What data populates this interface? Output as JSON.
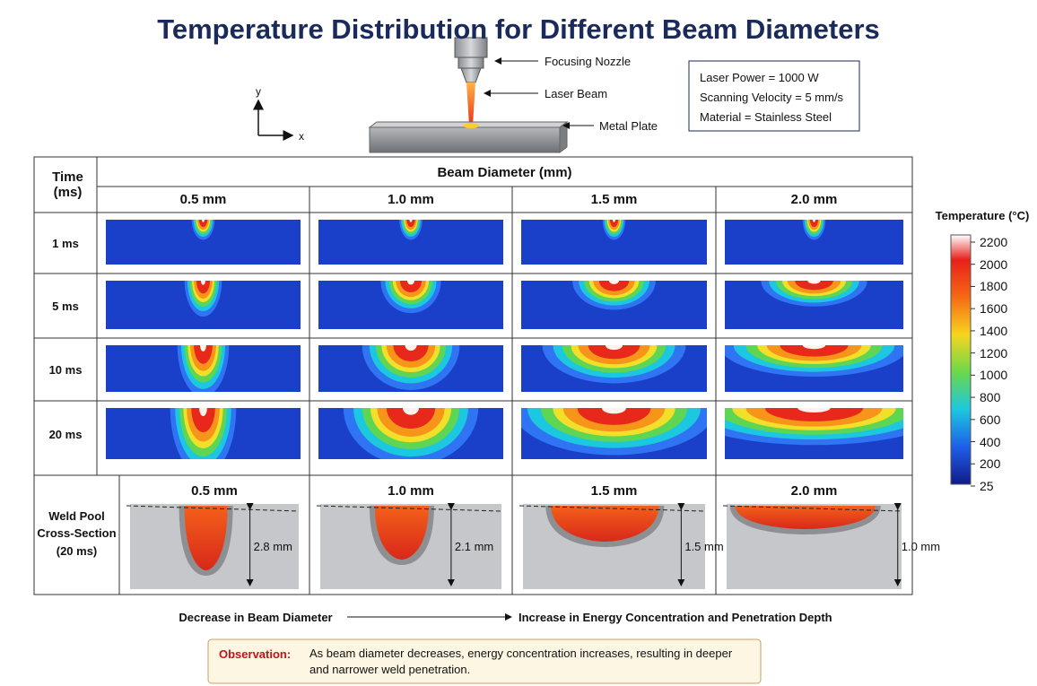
{
  "title": "Temperature Distribution for Different Beam Diameters",
  "schematic": {
    "labels": [
      "Focusing Nozzle",
      "Laser Beam",
      "Metal Plate"
    ],
    "axes": {
      "y": "y",
      "x": "x"
    }
  },
  "parameters": [
    "Laser Power = 1000 W",
    "Scanning Velocity = 5 mm/s",
    "Material = Stainless Steel"
  ],
  "table": {
    "corner": "Time (ms)",
    "group_header": "Beam Diameter (mm)",
    "columns": [
      "0.5 mm",
      "1.0 mm",
      "1.5 mm",
      "2.0 mm"
    ],
    "rows": [
      "1 ms",
      "5 ms",
      "10 ms",
      "20 ms"
    ],
    "weld_pool": {
      "label": "Weld Pool Cross-Section (20 ms)",
      "depths": [
        "2.8 mm",
        "2.1 mm",
        "1.5 mm",
        "1.0 mm"
      ]
    }
  },
  "colorbar": {
    "title": "Temperature (°C)",
    "ticks": [
      2200,
      2000,
      1800,
      1600,
      1400,
      1200,
      1000,
      800,
      600,
      400,
      200,
      25
    ]
  },
  "trend": {
    "from": "Decrease in Beam Diameter",
    "to": "Increase in Energy Concentration and Penetration Depth"
  },
  "observation": {
    "label": "Observation:",
    "text": "As beam diameter decreases, energy concentration increases, resulting in deeper and narrower weld penetration."
  }
}
